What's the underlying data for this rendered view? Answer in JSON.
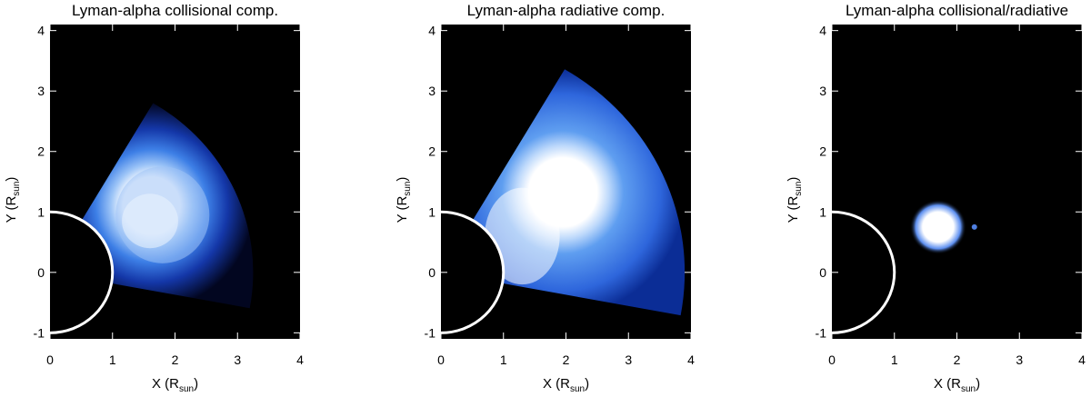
{
  "chart_data": [
    {
      "type": "image",
      "title": "Lyman-alpha collisional comp.",
      "xlabel": [
        "X (R",
        "sun",
        ")"
      ],
      "ylabel": [
        "Y (R",
        "sun",
        ")"
      ],
      "xlim": [
        0,
        4
      ],
      "ylim": [
        -1.1,
        4.1
      ],
      "xticks": [
        0,
        1,
        2,
        3,
        4
      ],
      "yticks": [
        -1,
        0,
        1,
        2,
        3,
        4
      ]
    },
    {
      "type": "image",
      "title": "Lyman-alpha radiative comp.",
      "xlabel": [
        "X (R",
        "sun",
        ")"
      ],
      "ylabel": [
        "Y (R",
        "sun",
        ")"
      ],
      "xlim": [
        0,
        4
      ],
      "ylim": [
        -1.1,
        4.1
      ],
      "xticks": [
        0,
        1,
        2,
        3,
        4
      ],
      "yticks": [
        -1,
        0,
        1,
        2,
        3,
        4
      ]
    },
    {
      "type": "image",
      "title": "Lyman-alpha collisional/radiative",
      "xlabel": [
        "X (R",
        "sun",
        ")"
      ],
      "ylabel": [
        "Y (R",
        "sun",
        ")"
      ],
      "xlim": [
        0,
        4
      ],
      "ylim": [
        -1.1,
        4.1
      ],
      "xticks": [
        0,
        1,
        2,
        3,
        4
      ],
      "yticks": [
        -1,
        0,
        1,
        2,
        3,
        4
      ]
    }
  ]
}
